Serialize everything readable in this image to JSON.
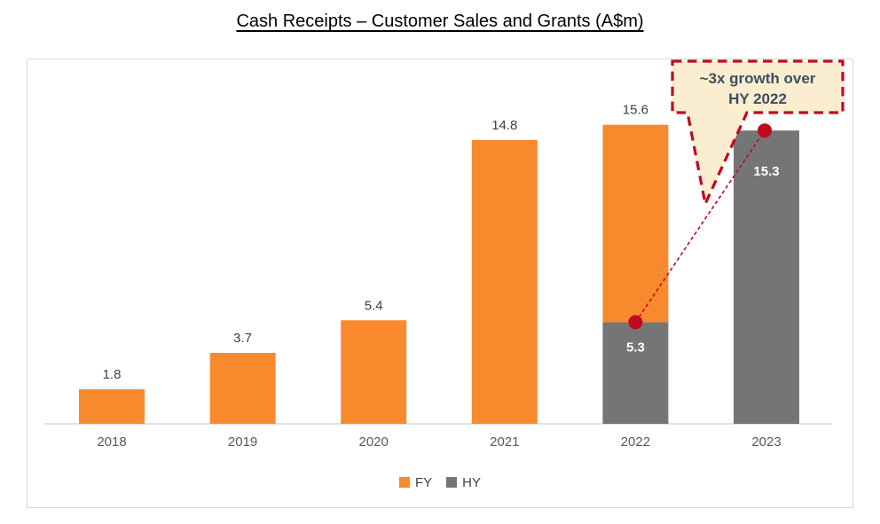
{
  "title": "Cash Receipts – Customer Sales and Grants (A$m)",
  "chart_data": {
    "type": "bar",
    "stacked": true,
    "title": "Cash Receipts – Customer Sales and Grants (A$m)",
    "categories": [
      "2018",
      "2019",
      "2020",
      "2021",
      "2022",
      "2023"
    ],
    "series": [
      {
        "name": "FY",
        "color": "#F8892D",
        "values": [
          1.8,
          3.7,
          5.4,
          14.8,
          15.6,
          null
        ]
      },
      {
        "name": "HY",
        "color": "#757575",
        "values": [
          null,
          null,
          null,
          null,
          5.3,
          15.3
        ]
      }
    ],
    "ylim": [
      0,
      19
    ],
    "grid": false,
    "y_axis_visible": false,
    "legend_position": "bottom",
    "value_label_format": "0.0",
    "notes": "2022 bar is stacked: HY 5.3 (gray, bottom) within FY total 15.6 (orange). 2023 shows HY only (15.3, gray)."
  },
  "annotation": {
    "line1": "~3x growth over",
    "line2": "HY 2022",
    "from": {
      "category": "2022",
      "series": "HY",
      "value": 5.3
    },
    "to": {
      "category": "2023",
      "series": "HY",
      "value": 15.3
    },
    "bg": "#FBEED0",
    "border": "#C00A1E",
    "text_color": "#3D4D63"
  },
  "legend": [
    {
      "label": "FY",
      "color": "#F8892D"
    },
    {
      "label": "HY",
      "color": "#757575"
    }
  ],
  "colors": {
    "axis_line": "#D9D9D9",
    "frame_border": "#D9D9D9",
    "value_label": "#3F3F3F",
    "category_label": "#595959",
    "inside_label": "#FFFFFF",
    "marker": "#C00A1E"
  }
}
